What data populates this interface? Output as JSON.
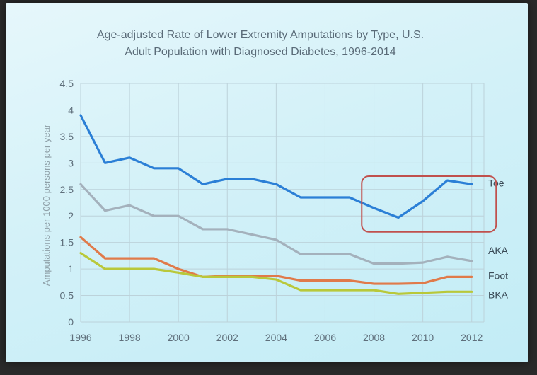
{
  "chart_data": {
    "type": "line",
    "title_line1": "Age-adjusted Rate of Lower Extremity Amputations by Type, U.S.",
    "title_line2": "Adult Population with Diagnosed Diabetes, 1996-2014",
    "ylabel": "Amputations per 1000 persons per year",
    "xlabel": "",
    "ylim": [
      0,
      4.5
    ],
    "xlim": [
      1996,
      2012.5
    ],
    "yticks": [
      0,
      0.5,
      1,
      1.5,
      2,
      2.5,
      3,
      3.5,
      4,
      4.5
    ],
    "yticklabels": [
      "0",
      "0.5",
      "1",
      "1.5",
      "2",
      "2.5",
      "3",
      "3.5",
      "4",
      "4.5"
    ],
    "xticks": [
      1996,
      1998,
      2000,
      2002,
      2004,
      2006,
      2008,
      2010,
      2012
    ],
    "xticklabels": [
      "1996",
      "1998",
      "2000",
      "2002",
      "2004",
      "2006",
      "2008",
      "2010",
      "2012"
    ],
    "grid": true,
    "x": [
      1996,
      1997,
      1998,
      1999,
      2000,
      2001,
      2002,
      2003,
      2004,
      2005,
      2006,
      2007,
      2008,
      2009,
      2010,
      2011,
      2012
    ],
    "series": [
      {
        "name": "Toe",
        "color": "#2b7fd6",
        "values": [
          3.9,
          3.0,
          3.1,
          2.9,
          2.9,
          2.6,
          2.7,
          2.7,
          2.6,
          2.35,
          2.35,
          2.35,
          2.15,
          1.97,
          2.28,
          2.67,
          2.6
        ]
      },
      {
        "name": "AKA",
        "color": "#a4b1bc",
        "values": [
          2.6,
          2.1,
          2.2,
          2.0,
          2.0,
          1.75,
          1.75,
          1.65,
          1.55,
          1.28,
          1.28,
          1.28,
          1.1,
          1.1,
          1.12,
          1.23,
          1.15
        ]
      },
      {
        "name": "Foot",
        "color": "#e07a4a",
        "values": [
          1.6,
          1.2,
          1.2,
          1.2,
          1.0,
          0.85,
          0.87,
          0.87,
          0.87,
          0.78,
          0.78,
          0.78,
          0.72,
          0.72,
          0.73,
          0.85,
          0.85
        ]
      },
      {
        "name": "BKA",
        "color": "#b9c83a",
        "values": [
          1.3,
          1.0,
          1.0,
          1.0,
          0.93,
          0.85,
          0.85,
          0.85,
          0.8,
          0.6,
          0.6,
          0.6,
          0.6,
          0.53,
          0.55,
          0.57,
          0.57
        ]
      }
    ],
    "highlight_box": {
      "x_range": [
        2007.5,
        2013
      ],
      "y_range": [
        1.7,
        2.75
      ],
      "color": "#c0504d"
    },
    "colors": {
      "grid": "#bcd2da",
      "axis_text": "#5f6f7b"
    }
  }
}
